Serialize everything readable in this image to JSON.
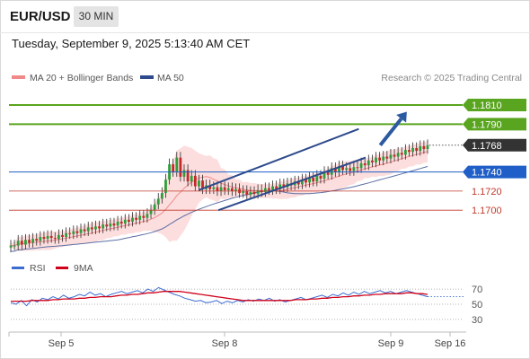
{
  "header": {
    "symbol": "EUR/USD",
    "timeframe": "30 MIN",
    "timestamp": "Tuesday, September 9, 2025 5:13:40 AM CET"
  },
  "legend": {
    "ma20_label": "MA 20 + Bollinger Bands",
    "ma50_label": "MA 50",
    "copyright": "Research © 2025 Trading Central",
    "ma20_color": "#f08a8a",
    "ma50_color": "#2c4a8c",
    "band_fill": "#fbd3d3"
  },
  "chart_data": [
    {
      "type": "line",
      "subtype": "candlestick",
      "ylim": [
        1.1657,
        1.1826
      ],
      "x_ticks": [
        "Sep 5",
        "Sep 8",
        "Sep 9",
        "Sep 16"
      ],
      "price_lines": [
        {
          "label": "1.1810",
          "value": 1.181,
          "color": "#5aa51f",
          "style": "solid-badge"
        },
        {
          "label": "1.1790",
          "value": 1.179,
          "color": "#5aa51f",
          "style": "solid-badge"
        },
        {
          "label": "1.1768",
          "value": 1.1768,
          "color": "#333333",
          "style": "dotted-badge"
        },
        {
          "label": "1.1740",
          "value": 1.174,
          "color": "#1f5fc7",
          "style": "solid-badge"
        },
        {
          "label": "1.1720",
          "value": 1.172,
          "color": "#c0392b",
          "style": "red-line"
        },
        {
          "label": "1.1700",
          "value": 1.17,
          "color": "#c0392b",
          "style": "red-line"
        }
      ],
      "channel": {
        "upper": [
          [
            0.415,
            1.1721
          ],
          [
            0.765,
            1.1785
          ]
        ],
        "lower": [
          [
            0.458,
            1.17
          ],
          [
            0.78,
            1.1755
          ]
        ]
      },
      "arrow": {
        "from": [
          0.812,
          1.1768
        ],
        "to": [
          0.87,
          1.1803
        ]
      },
      "candles_close_series": [
        1.1663,
        1.1663,
        1.1668,
        1.1664,
        1.1669,
        1.1666,
        1.167,
        1.1668,
        1.1672,
        1.167,
        1.1673,
        1.1671,
        1.167,
        1.1674,
        1.1672,
        1.1676,
        1.1675,
        1.1678,
        1.1676,
        1.168,
        1.1678,
        1.1682,
        1.168,
        1.1683,
        1.1681,
        1.1685,
        1.1683,
        1.1686,
        1.1684,
        1.1688,
        1.1686,
        1.169,
        1.1688,
        1.1692,
        1.169,
        1.1694,
        1.1692,
        1.1696,
        1.17,
        1.1706,
        1.1712,
        1.1718,
        1.1732,
        1.1748,
        1.174,
        1.1755,
        1.1735,
        1.1742,
        1.173,
        1.1736,
        1.1725,
        1.1731,
        1.1722,
        1.1726,
        1.1722,
        1.1724,
        1.172,
        1.1724,
        1.1721,
        1.1723,
        1.172,
        1.1722,
        1.1718,
        1.172,
        1.1716,
        1.1719,
        1.1717,
        1.1721,
        1.1719,
        1.1723,
        1.1721,
        1.1725,
        1.1722,
        1.1727,
        1.1724,
        1.1728,
        1.1726,
        1.173,
        1.1727,
        1.1732,
        1.1729,
        1.1734,
        1.173,
        1.1736,
        1.1733,
        1.174,
        1.1737,
        1.1744,
        1.174,
        1.1746,
        1.1742,
        1.1744,
        1.1741,
        1.1745,
        1.1744,
        1.1749,
        1.1747,
        1.1752,
        1.175,
        1.1755,
        1.1752,
        1.1756,
        1.1754,
        1.1758,
        1.1756,
        1.176,
        1.1758,
        1.1763,
        1.1761,
        1.1765,
        1.1762,
        1.1767,
        1.1764,
        1.1768
      ]
    },
    {
      "type": "line",
      "title": "RSI",
      "series": [
        {
          "name": "RSI",
          "color": "#3b6ccf"
        },
        {
          "name": "9MA",
          "color": "#d0021b"
        }
      ],
      "ylim": [
        18,
        82
      ],
      "y_ticks": [
        "70",
        "50",
        "30"
      ],
      "rsi_values": [
        52,
        50,
        55,
        48,
        56,
        53,
        58,
        56,
        60,
        57,
        62,
        58,
        60,
        63,
        61,
        66,
        62,
        64,
        60,
        63,
        65,
        67,
        64,
        66,
        68,
        65,
        70,
        67,
        72,
        69,
        66,
        63,
        61,
        58,
        56,
        54,
        55,
        52,
        53,
        55,
        51,
        54,
        52,
        55,
        53,
        56,
        54,
        57,
        55,
        58,
        54,
        56,
        53,
        55,
        57,
        59,
        56,
        58,
        60,
        62,
        59,
        63,
        61,
        65,
        62,
        66,
        63,
        67,
        64,
        66,
        68,
        65,
        67,
        64,
        66,
        68,
        66,
        64,
        62,
        60
      ],
      "ma_values": [
        54,
        54,
        54,
        54,
        55,
        55,
        55,
        55,
        56,
        56,
        57,
        57,
        57,
        58,
        58,
        59,
        59,
        60,
        60,
        60,
        61,
        62,
        62,
        63,
        63,
        64,
        65,
        65,
        66,
        67,
        67,
        67,
        67,
        66,
        65,
        64,
        63,
        62,
        61,
        60,
        59,
        58,
        57,
        56,
        55,
        55,
        55,
        55,
        55,
        55,
        55,
        55,
        55,
        55,
        56,
        56,
        56,
        57,
        57,
        58,
        58,
        59,
        59,
        60,
        60,
        61,
        61,
        62,
        62,
        63,
        63,
        64,
        64,
        64,
        64,
        65,
        65,
        64,
        64,
        63
      ]
    }
  ]
}
